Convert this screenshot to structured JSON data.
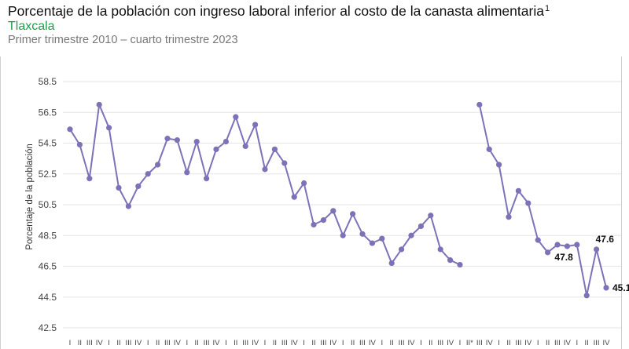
{
  "header": {
    "title": "Porcentaje de la población con ingreso laboral inferior al costo de la canasta alimentaria",
    "title_note": "1",
    "subtitle": "Tlaxcala",
    "period": "Primer trimestre 2010 – cuarto trimestre 2023"
  },
  "chart_data": {
    "type": "line",
    "ylabel": "Porcentaje de la población",
    "ylim": [
      42.5,
      58.5
    ],
    "yticks": [
      "58.5",
      "56.5",
      "54.5",
      "52.5",
      "50.5",
      "48.5",
      "46.5",
      "44.5",
      "42.5"
    ],
    "grid": "horizontal",
    "line_color": "#7b72b8",
    "gridline_color": "#e6e6e6",
    "x_tick_labels": [
      "I",
      "II",
      "III",
      "IV",
      "I",
      "II",
      "III",
      "IV",
      "I",
      "II",
      "III",
      "IV",
      "I",
      "II",
      "III",
      "IV",
      "I",
      "II",
      "III",
      "IV",
      "I",
      "II",
      "III",
      "IV",
      "I",
      "II",
      "III",
      "IV",
      "I",
      "II",
      "III",
      "IV",
      "I",
      "II",
      "III",
      "IV",
      "I",
      "II",
      "III",
      "IV",
      "I",
      "II*",
      "III",
      "IV",
      "I",
      "II",
      "III",
      "IV",
      "I",
      "II",
      "III",
      "IV",
      "I",
      "II",
      "III",
      "IV"
    ],
    "series": [
      {
        "segment": "2010T1-2020T1",
        "x": [
          0,
          1,
          2,
          3,
          4,
          5,
          6,
          7,
          8,
          9,
          10,
          11,
          12,
          13,
          14,
          15,
          16,
          17,
          18,
          19,
          20,
          21,
          22,
          23,
          24,
          25,
          26,
          27,
          28,
          29,
          30,
          31,
          32,
          33,
          34,
          35,
          36,
          37,
          38,
          39,
          40
        ],
        "values": [
          55.4,
          54.4,
          52.2,
          57.0,
          55.5,
          51.6,
          50.4,
          51.7,
          52.5,
          53.1,
          54.8,
          54.7,
          52.6,
          54.6,
          52.2,
          54.1,
          54.6,
          56.2,
          54.3,
          55.7,
          52.8,
          54.1,
          53.2,
          51.0,
          51.9,
          49.2,
          49.5,
          50.1,
          48.5,
          49.9,
          48.6,
          48.0,
          48.3,
          46.7,
          47.6,
          48.5,
          49.1,
          49.8,
          47.6,
          46.9,
          46.6
        ]
      },
      {
        "segment": "2020T3-2023T4",
        "x": [
          42,
          43,
          44,
          45,
          46,
          47,
          48,
          49,
          50,
          51,
          52,
          53,
          54,
          55
        ],
        "values": [
          57.0,
          54.1,
          53.1,
          49.7,
          51.4,
          50.6,
          48.2,
          47.4,
          47.9,
          47.8,
          47.9,
          44.6,
          47.6,
          45.1
        ]
      }
    ],
    "annotations": [
      {
        "x": 51,
        "value": 47.8,
        "text": "47.8"
      },
      {
        "x": 54,
        "value": 47.6,
        "text": "47.6"
      },
      {
        "x": 55,
        "value": 45.1,
        "text": "45.1"
      }
    ]
  }
}
